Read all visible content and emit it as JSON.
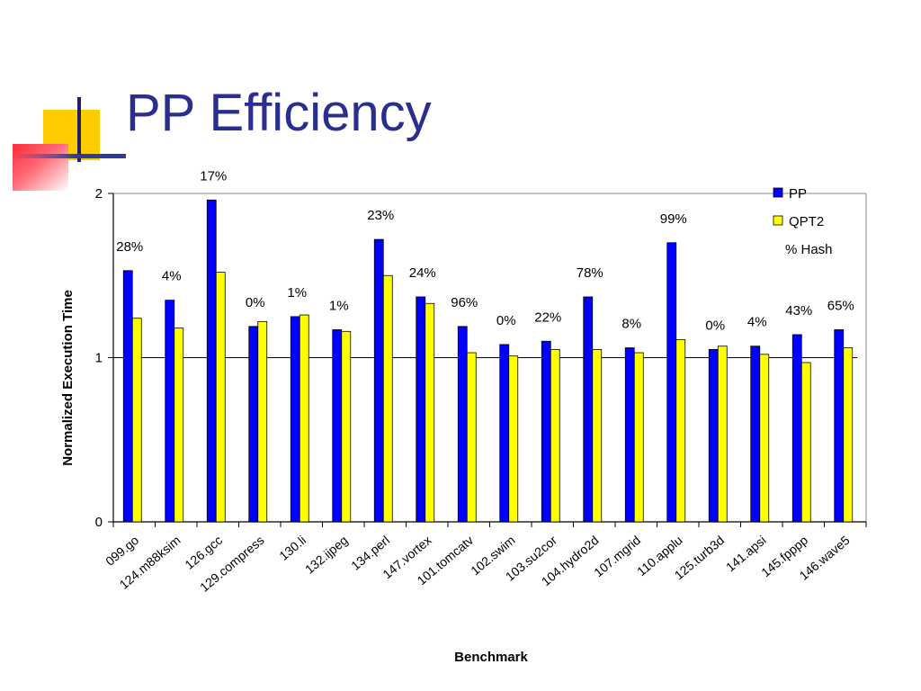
{
  "slide": {
    "title": "PP Efficiency"
  },
  "colors": {
    "title": "#2a2f8f",
    "pp": "#0000ff",
    "qpt2": "#ffff00",
    "bar_outline": "#000000"
  },
  "chart_data": {
    "type": "bar",
    "title": "",
    "xlabel": "Benchmark",
    "ylabel": "Normalized Execution Time",
    "ylim": [
      0,
      2
    ],
    "yticks": [
      0,
      1,
      2
    ],
    "grid": false,
    "reference_line": 1,
    "legend_position": "top-right",
    "categories": [
      "099.go",
      "124.m88ksim",
      "126.gcc",
      "129.compress",
      "130.li",
      "132.ijpeg",
      "134.perl",
      "147.vortex",
      "101.tomcatv",
      "102.swim",
      "103.su2cor",
      "104.hydro2d",
      "107.mgrid",
      "110.applu",
      "125.turb3d",
      "141.apsi",
      "145.fpppp",
      "146.wave5"
    ],
    "series": [
      {
        "name": "PP",
        "color": "#0000ff",
        "values": [
          1.53,
          1.35,
          1.96,
          1.19,
          1.25,
          1.17,
          1.72,
          1.37,
          1.19,
          1.08,
          1.1,
          1.37,
          1.06,
          1.7,
          1.05,
          1.07,
          1.14,
          1.17
        ]
      },
      {
        "name": "QPT2",
        "color": "#ffff00",
        "values": [
          1.24,
          1.18,
          1.52,
          1.22,
          1.26,
          1.16,
          1.5,
          1.33,
          1.03,
          1.01,
          1.05,
          1.05,
          1.03,
          1.11,
          1.07,
          1.02,
          0.97,
          1.06
        ]
      }
    ],
    "annotation_legend": "% Hash",
    "hash_labels": [
      "28%",
      "4%",
      "17%",
      "0%",
      "1%",
      "1%",
      "23%",
      "24%",
      "96%",
      "0%",
      "22%",
      "78%",
      "8%",
      "99%",
      "0%",
      "4%",
      "43%",
      "65%"
    ]
  }
}
